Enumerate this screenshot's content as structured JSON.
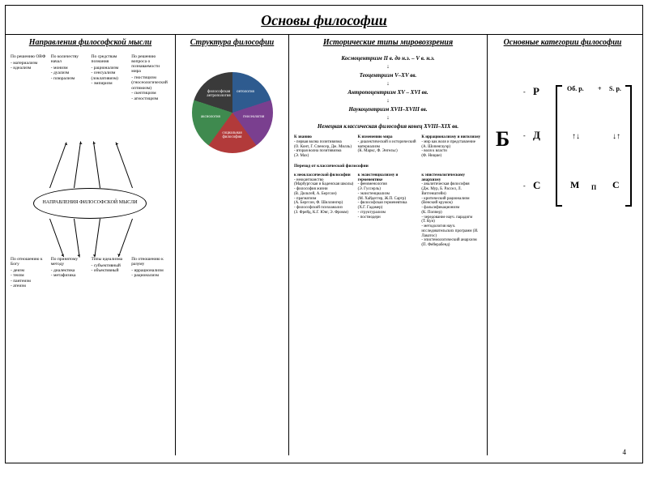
{
  "title": "Основы философии",
  "page_number": "4",
  "columns": {
    "c1": {
      "title": "Направления философской мысли",
      "center": "НАПРАВЛЕНИЯ ФИЛОСОФСКОЙ МЫСЛИ",
      "top": [
        {
          "hdr": "По решению ОВФ",
          "items": [
            "материализм",
            "идеализм"
          ]
        },
        {
          "hdr": "По количеству начал",
          "items": [
            "монизм",
            "дуализм",
            "плюрализм"
          ]
        },
        {
          "hdr": "По средствам познания",
          "items": [
            "рационализм",
            "сенсуализм (локлативизм)",
            "эмпиризм"
          ]
        },
        {
          "hdr": "По решению вопроса о познаваемости мира",
          "items": [
            "гностицизм (гносеологический оптимизм)",
            "скептицизм",
            "агностицизм"
          ]
        }
      ],
      "bottom": [
        {
          "hdr": "По отношению к Богу",
          "items": [
            "деизм",
            "теизм",
            "пантеизм",
            "атеизм"
          ]
        },
        {
          "hdr": "По принятому методу",
          "items": [
            "диалектика",
            "метафизика"
          ]
        },
        {
          "hdr": "Типы идеализма",
          "items": [
            "субъективный",
            "объективный"
          ]
        },
        {
          "hdr": "По отношению к разуму",
          "items": [
            "иррационализм",
            "рационализм"
          ]
        }
      ]
    },
    "c2": {
      "title": "Структура философии",
      "pie": {
        "slices": [
          {
            "label": "онтология",
            "color": "#2e5b8f"
          },
          {
            "label": "гносеология",
            "color": "#7a3f8f"
          },
          {
            "label": "социальная философия",
            "color": "#b23a3a"
          },
          {
            "label": "аксиология",
            "color": "#3f8a4f"
          },
          {
            "label": "философская антропология",
            "color": "#3a3a3a"
          }
        ]
      }
    },
    "c3": {
      "title": "Исторические типы мировоззрения",
      "timeline": [
        "Космоцентризм II в. до н.э. – V в. н.э.",
        "Теоцентризм V–XV вв.",
        "Антропоцентризм XV – XVI вв.",
        "Наукоцентризм XVII–XVIII вв.",
        "Немецкая классическая философия конец XVIII–XIX вв."
      ],
      "row1": [
        {
          "h": "К знанию",
          "t": "- первая волна позитивизма\n(О. Конт, Г. Спенсер, Дж. Милль)\n- вторая волна позитивизма\n(Э. Мах)"
        },
        {
          "h": "К изменению мира",
          "t": "- диалектический и исторический материализм\n(К. Маркс, Ф. Энгельс)"
        },
        {
          "h": "К иррационализму и нигилизму",
          "t": "- мир как воля и представление\n(А. Шопенгауэр)\n- воля к власти\n(Ф. Ницше)"
        }
      ],
      "sub": "Переход от классической философии",
      "row2": [
        {
          "h": "к неоклассической философии",
          "t": "- неокантианство\n(Марбургская и Баденская школы)\n- философия жизни\n(В. Дильтей, А. Бергсон)\n- прагматизм\n(А. Бергсон, Ф. Шиллингер)\n- философский психоанализ\n(З. Фрейд, К.Г. Юнг, Э. Фромм)"
        },
        {
          "h": "к экзистенциализму и герменевтике",
          "t": "- феноменология\n(Э. Гуссерль)\n- экзистенциализм\n(М. Хайдеггер, Ж.П. Сартр)\n- философская герменевтика\n(Х.Г. Гадамер)\n- структурализм\n- постмодерн"
        },
        {
          "h": "к эпистемологическому анархизму",
          "t": "- аналитическая философия\n(Дж. Мур, Б. Рассел, Л. Витгенштейн)\n- критический рационализм\n(Венский кружок)\n- фальсификационизм\n(К. Поппер)\n- чередование науч. парадигм\n(Т. Кун)\n- методология науч. исследовательских программ (И. Лакатос)\n- эпистемологический анархизм\n(П. Фейерабенд)"
        }
      ]
    },
    "c4": {
      "title": "Основные категории философии",
      "big": "Б",
      "marks": {
        "r": "Р",
        "d": "Д",
        "c_left": "С",
        "ob": "Об. р.",
        "sp": "S. p.",
        "m": "М",
        "p": "П",
        "c_right": "С",
        "dash": "-",
        "plus": "+",
        "up_down": "↑↓",
        "down_up": "↓↑"
      }
    }
  },
  "style": {
    "background": "#ffffff",
    "border_color": "#000000",
    "title_fontsize": 18,
    "col_title_fontsize": 10,
    "body_fontsize": 7,
    "tiny_fontsize": 5.5,
    "red": "#c00000"
  }
}
